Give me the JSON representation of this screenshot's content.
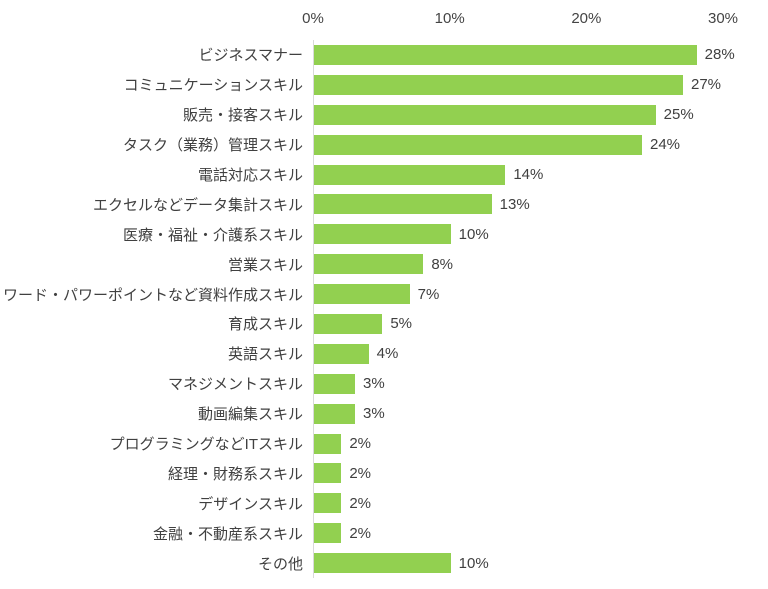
{
  "chart_data": {
    "type": "bar",
    "orientation": "horizontal",
    "title": "",
    "xlabel": "",
    "ylabel": "",
    "xlim": [
      0,
      30
    ],
    "x_tick_values": [
      0,
      10,
      20,
      30
    ],
    "x_tick_labels": [
      "0%",
      "10%",
      "20%",
      "30%"
    ],
    "grid": "off",
    "legend": "none",
    "categories": [
      "ビジネスマナー",
      "コミュニケーションスキル",
      "販売・接客スキル",
      "タスク（業務）管理スキル",
      "電話対応スキル",
      "エクセルなどデータ集計スキル",
      "医療・福祉・介護系スキル",
      "営業スキル",
      "ワード・パワーポイントなど資料作成スキル",
      "育成スキル",
      "英語スキル",
      "マネジメントスキル",
      "動画編集スキル",
      "プログラミングなどITスキル",
      "経理・財務系スキル",
      "デザインスキル",
      "金融・不動産系スキル",
      "その他"
    ],
    "values": [
      28,
      27,
      25,
      24,
      14,
      13,
      10,
      8,
      7,
      5,
      4,
      3,
      3,
      2,
      2,
      2,
      2,
      10
    ],
    "value_labels": [
      "28%",
      "27%",
      "25%",
      "24%",
      "14%",
      "13%",
      "10%",
      "8%",
      "7%",
      "5%",
      "4%",
      "3%",
      "3%",
      "2%",
      "2%",
      "2%",
      "2%",
      "10%"
    ],
    "bar_color": "#92D050",
    "axis_line_color": "#D9D9D9",
    "text_color": "#404040"
  }
}
